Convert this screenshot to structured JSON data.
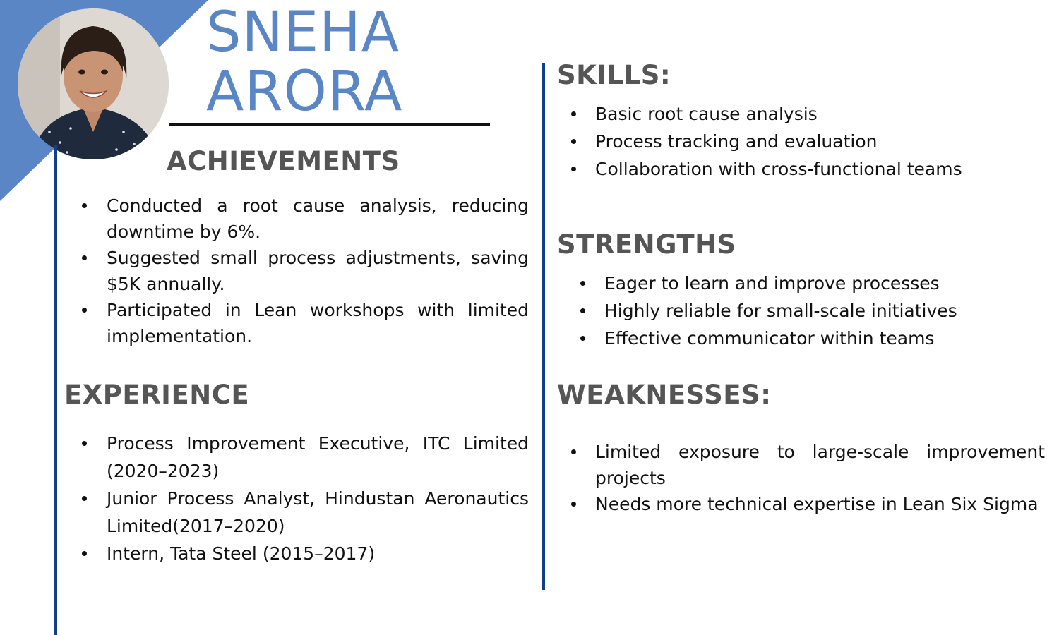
{
  "name": {
    "first": "SNEHA",
    "last": "ARORA"
  },
  "colors": {
    "accent": "#5b86c5",
    "rule": "#123f8c",
    "heading": "#555555"
  },
  "achievements": {
    "title": "ACHIEVEMENTS",
    "items": [
      "Conducted a root cause analysis, reducing downtime by 6%.",
      "Suggested small process adjustments, saving $5K annually.",
      "Participated in Lean workshops with limited implementation."
    ]
  },
  "experience": {
    "title": "EXPERIENCE",
    "items": [
      "Process Improvement Executive, ITC Limited (2020–2023)",
      "Junior Process Analyst, Hindustan Aeronautics Limited(2017–2020)",
      "Intern, Tata Steel (2015–2017)"
    ]
  },
  "skills": {
    "title": "SKILLS:",
    "items": [
      "Basic root cause analysis",
      "Process tracking and evaluation",
      "Collaboration with cross-functional teams"
    ]
  },
  "strengths": {
    "title": "STRENGTHS",
    "items": [
      "Eager to learn and improve processes",
      "Highly reliable for small-scale initiatives",
      "Effective communicator within teams"
    ]
  },
  "weaknesses": {
    "title": "WEAKNESSES:",
    "items": [
      "Limited exposure to large-scale improvement projects",
      "Needs more technical expertise in Lean Six Sigma"
    ]
  }
}
